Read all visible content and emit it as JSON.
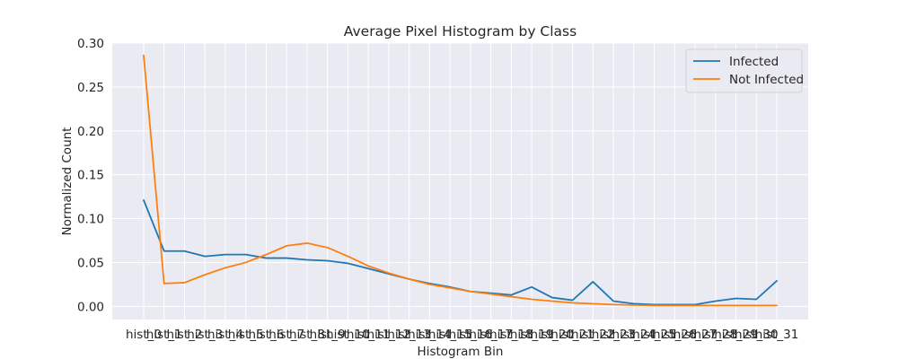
{
  "chart_data": {
    "type": "line",
    "title": "Average Pixel Histogram by Class",
    "xlabel": "Histogram Bin",
    "ylabel": "Normalized Count",
    "categories": [
      "hist_0",
      "hist_1",
      "hist_2",
      "hist_3",
      "hist_4",
      "hist_5",
      "hist_6",
      "hist_7",
      "hist_8",
      "hist_9",
      "hist_10",
      "hist_11",
      "hist_12",
      "hist_13",
      "hist_14",
      "hist_15",
      "hist_16",
      "hist_17",
      "hist_18",
      "hist_19",
      "hist_20",
      "hist_21",
      "hist_22",
      "hist_23",
      "hist_24",
      "hist_25",
      "hist_26",
      "hist_27",
      "hist_28",
      "hist_29",
      "hist_30",
      "hist_31"
    ],
    "ylim": [
      -0.015,
      0.3
    ],
    "yticks": [
      "0.00",
      "0.05",
      "0.10",
      "0.15",
      "0.20",
      "0.25",
      "0.30"
    ],
    "grid": true,
    "legend_position": "top-right",
    "series": [
      {
        "name": "Infected",
        "color": "#1f77b4",
        "values": [
          0.121,
          0.063,
          0.063,
          0.057,
          0.059,
          0.059,
          0.055,
          0.055,
          0.053,
          0.052,
          0.049,
          0.043,
          0.037,
          0.031,
          0.026,
          0.022,
          0.017,
          0.015,
          0.013,
          0.022,
          0.01,
          0.007,
          0.028,
          0.006,
          0.003,
          0.002,
          0.002,
          0.002,
          0.006,
          0.009,
          0.008,
          0.029
        ]
      },
      {
        "name": "Not Infected",
        "color": "#ff7f0e",
        "values": [
          0.286,
          0.026,
          0.027,
          0.036,
          0.044,
          0.05,
          0.059,
          0.069,
          0.072,
          0.067,
          0.057,
          0.046,
          0.038,
          0.031,
          0.025,
          0.021,
          0.017,
          0.014,
          0.011,
          0.008,
          0.006,
          0.004,
          0.003,
          0.002,
          0.0015,
          0.001,
          0.001,
          0.001,
          0.001,
          0.001,
          0.001,
          0.001
        ]
      }
    ]
  }
}
